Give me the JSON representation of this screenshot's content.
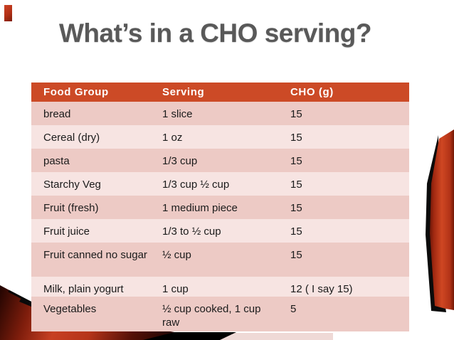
{
  "slide": {
    "title": "What’s in a CHO serving?"
  },
  "table": {
    "columns": [
      "Food Group",
      "Serving",
      "CHO (g)"
    ],
    "rows": [
      [
        "bread",
        "1 slice",
        "15"
      ],
      [
        "Cereal (dry)",
        "1 oz",
        "15"
      ],
      [
        "pasta",
        "1/3 cup",
        "15"
      ],
      [
        "Starchy Veg",
        "1/3 cup ½ cup",
        "15"
      ],
      [
        "Fruit (fresh)",
        "1 medium piece",
        "15"
      ],
      [
        "Fruit juice",
        "1/3 to ½ cup",
        "15"
      ],
      [
        "Fruit canned no sugar",
        "½ cup",
        "15"
      ],
      [
        "Milk, plain yogurt",
        "1 cup",
        "12 ( I say 15)"
      ],
      [
        "Vegetables",
        "½ cup cooked, 1 cup raw",
        "5"
      ]
    ]
  },
  "colors": {
    "header_bg": "#cc4a26",
    "row_dark": "#edcac5",
    "row_light": "#f7e4e2",
    "title_text": "#595959",
    "accent_red": "#c0391e",
    "accent_dark_red": "#5a1006",
    "shadow_black": "#000000",
    "pale_band": "#efd9d6"
  }
}
